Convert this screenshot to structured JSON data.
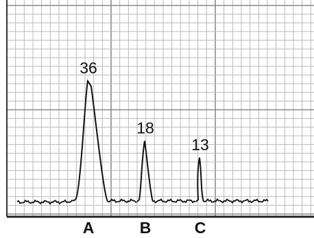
{
  "chart_data": {
    "type": "peaks",
    "categories": [
      "A",
      "B",
      "C"
    ],
    "values": [
      36,
      18,
      13
    ],
    "color": "#111111"
  }
}
